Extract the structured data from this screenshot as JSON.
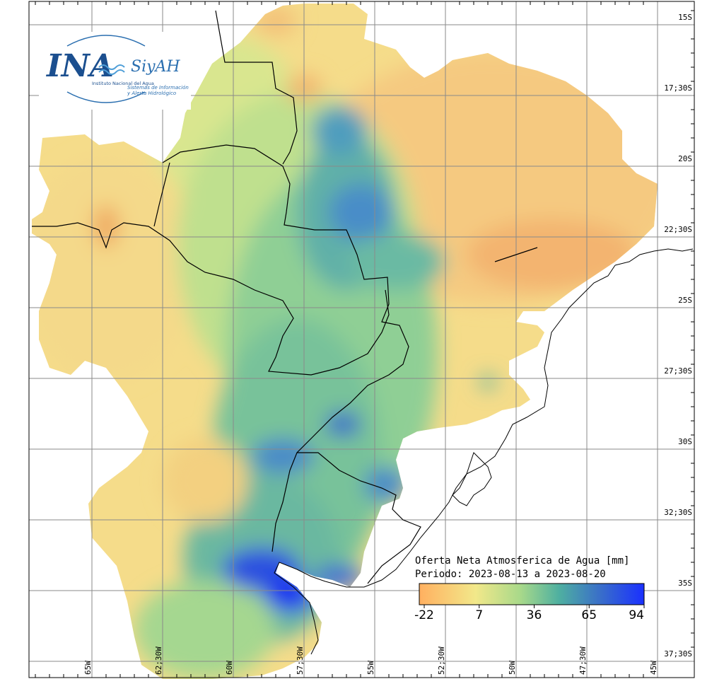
{
  "logo": {
    "ina": "INA",
    "siyah": "SiyAH",
    "institute": "Instituto Nacional del Agua",
    "system_line1": "Sistemas de Información",
    "system_line2": "y Alerta Hidrológico"
  },
  "title": {
    "line1": "Oferta Neta Atmosferica de Agua [mm]",
    "line2": "Periodo: 2023-08-13 a 2023-08-20"
  },
  "colorbar": {
    "ticks": [
      "-22",
      "7",
      "36",
      "65",
      "94"
    ],
    "values": [
      -22,
      7,
      36,
      65,
      94
    ],
    "stops": [
      "#ffb060",
      "#f2e88a",
      "#a8d98a",
      "#4fb0a0",
      "#3a70c8",
      "#1a30ff"
    ]
  },
  "lat_labels": [
    "15S",
    "17;30S",
    "20S",
    "22;30S",
    "25S",
    "27;30S",
    "30S",
    "32;30S",
    "35S",
    "37;30S"
  ],
  "lon_labels": [
    "65W",
    "62;30W",
    "60W",
    "57;30W",
    "55W",
    "52;30W",
    "50W",
    "47;30W",
    "45W"
  ],
  "colors": {
    "ocean": "#ffffff",
    "grid": "#888888",
    "border": "#000000"
  }
}
